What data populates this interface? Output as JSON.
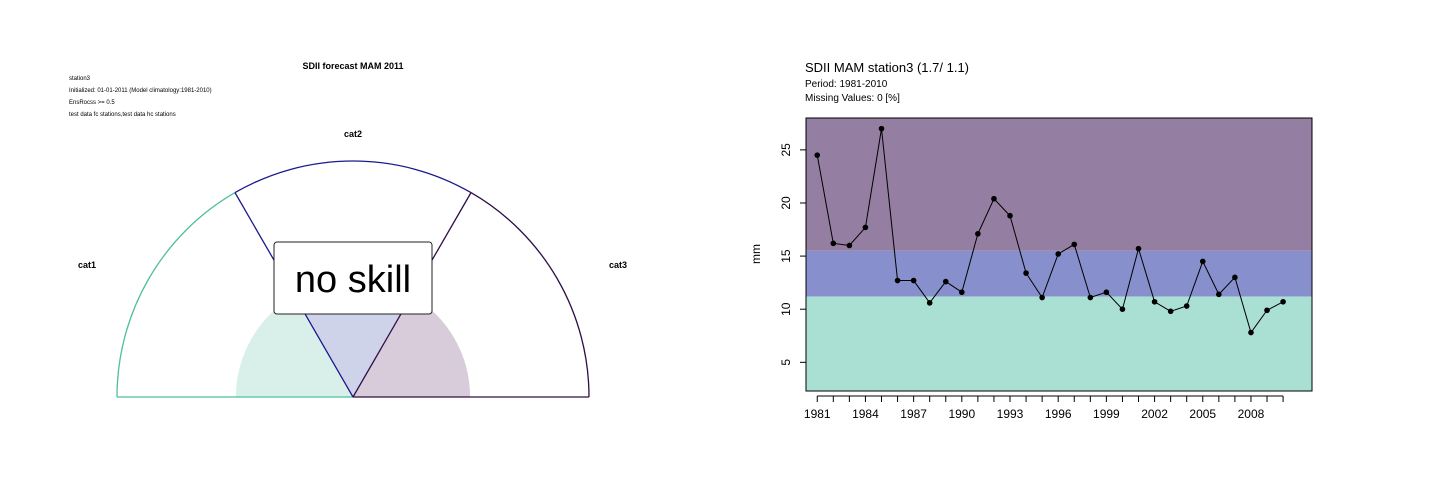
{
  "chart_data": [
    {
      "type": "gauge",
      "title": "SDII forecast MAM 2011",
      "info_lines": [
        "station3",
        "Initialized: 01-01-2011 (Model climatology:1981-2010)",
        "EnsRocss >= 0.5",
        "test data fc stations,test data hc stations"
      ],
      "categories": [
        "cat1",
        "cat2",
        "cat3"
      ],
      "category_colors": [
        "#4fbf9b",
        "#1a1a8c",
        "#2e0d47"
      ],
      "category_fill_colors": [
        "#d9f0ea",
        "#cfd3ea",
        "#d8ccdb"
      ],
      "probabilities": [
        0.333,
        0.333,
        0.333
      ],
      "label": "no skill"
    },
    {
      "type": "line",
      "title": "SDII MAM station3 (1.7/ 1.1)",
      "subtitle_lines": [
        "Period: 1981-2010",
        "Missing Values: 0 [%]"
      ],
      "ylabel": "mm",
      "xlabel": "",
      "x": [
        1981,
        1982,
        1983,
        1984,
        1985,
        1986,
        1987,
        1988,
        1989,
        1990,
        1991,
        1992,
        1993,
        1994,
        1995,
        1996,
        1997,
        1998,
        1999,
        2000,
        2001,
        2002,
        2003,
        2004,
        2005,
        2006,
        2007,
        2008,
        2009,
        2010
      ],
      "y": [
        24.5,
        16.2,
        16.0,
        17.7,
        27.0,
        12.7,
        12.7,
        10.6,
        12.6,
        11.6,
        17.1,
        20.4,
        18.8,
        13.4,
        11.1,
        15.2,
        16.1,
        11.1,
        11.6,
        10.0,
        15.7,
        10.7,
        9.8,
        10.3,
        14.5,
        11.4,
        13.0,
        7.8,
        9.9,
        10.7
      ],
      "xticks": [
        1981,
        1984,
        1987,
        1990,
        1993,
        1996,
        1999,
        2002,
        2005,
        2008
      ],
      "yticks": [
        5,
        10,
        15,
        20,
        25
      ],
      "xlim": [
        1980.3,
        2011.8
      ],
      "ylim": [
        2.3,
        28.0
      ],
      "bands": [
        {
          "from": 2.3,
          "to": 11.2,
          "color": "#aadfd3"
        },
        {
          "from": 11.2,
          "to": 15.5,
          "color": "#878fcc"
        },
        {
          "from": 15.5,
          "to": 28.0,
          "color": "#947ea2"
        }
      ],
      "grid": false,
      "legend": "none"
    }
  ]
}
